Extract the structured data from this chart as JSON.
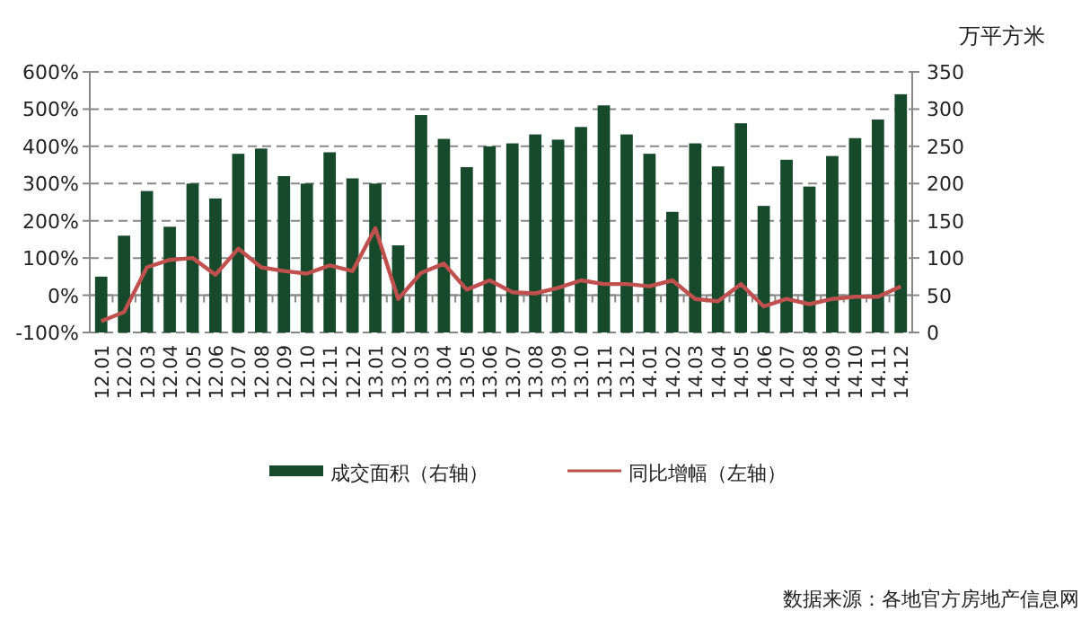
{
  "chart_data": {
    "type": "bar",
    "categories": [
      "12.01",
      "12.02",
      "12.03",
      "12.04",
      "12.05",
      "12.06",
      "12.07",
      "12.08",
      "12.09",
      "12.10",
      "12.11",
      "12.12",
      "13.01",
      "13.02",
      "13.03",
      "13.04",
      "13.05",
      "13.06",
      "13.07",
      "13.08",
      "13.09",
      "13.10",
      "13.11",
      "13.12",
      "14.01",
      "14.02",
      "14.03",
      "14.04",
      "14.05",
      "14.06",
      "14.07",
      "14.08",
      "14.09",
      "14.10",
      "14.11",
      "14.12"
    ],
    "series": [
      {
        "name": "成交面积（右轴）",
        "axis": "y2",
        "color": "#174a2b",
        "values": [
          75,
          130,
          190,
          142,
          200,
          180,
          240,
          247,
          210,
          200,
          242,
          207,
          200,
          117,
          292,
          260,
          222,
          250,
          254,
          266,
          259,
          276,
          305,
          266,
          240,
          162,
          254,
          223,
          281,
          170,
          232,
          196,
          237,
          261,
          286,
          320
        ]
      },
      {
        "name": "同比增幅（左轴）",
        "type": "line",
        "color": "#c0504d",
        "values": [
          -70,
          -45,
          75,
          95,
          100,
          55,
          125,
          75,
          65,
          58,
          80,
          65,
          180,
          -10,
          60,
          85,
          15,
          40,
          8,
          5,
          20,
          40,
          30,
          30,
          24,
          40,
          -10,
          -16,
          30,
          -30,
          -10,
          -24,
          -10,
          -4,
          -4,
          24
        ]
      }
    ],
    "ylim": [
      -100,
      600
    ],
    "yticks": [
      {
        "value": -100,
        "label": "-100%"
      },
      {
        "value": 0,
        "label": "0%"
      },
      {
        "value": 100,
        "label": "100%"
      },
      {
        "value": 200,
        "label": "200%"
      },
      {
        "value": 300,
        "label": "300%"
      },
      {
        "value": 400,
        "label": "400%"
      },
      {
        "value": 500,
        "label": "500%"
      },
      {
        "value": 600,
        "label": "600%"
      }
    ],
    "y2lim": [
      0,
      350
    ],
    "y2ticks": [
      0,
      50,
      100,
      150,
      200,
      250,
      300,
      350
    ],
    "y2label": "万平方米",
    "grid": "y",
    "legend": "bottom",
    "annotations": [
      "数据来源：各地官方房地产信息网"
    ]
  }
}
